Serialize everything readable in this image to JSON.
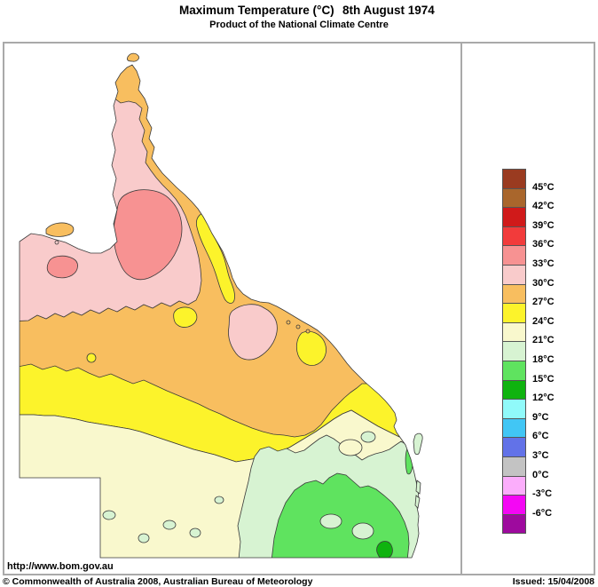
{
  "header": {
    "title": "Maximum Temperature (°C)",
    "date": "8th August 1974",
    "subtitle": "Product of the National Climate Centre"
  },
  "palette": {
    "band_45plus": "#9a3b20",
    "band_42_45": "#a9662c",
    "band_39_42": "#d01a1a",
    "band_36_39": "#f23b3b",
    "band_33_36": "#f79292",
    "band_30_33": "#f9cbcb",
    "band_27_30": "#f8be5f",
    "band_24_27": "#fcf32b",
    "band_21_24": "#f9f8cd",
    "band_18_21": "#d7f3d2",
    "band_15_18": "#5fe35f",
    "band_12_15": "#0fb30f",
    "band_9_12": "#90fafa",
    "band_6_9": "#41c6f5",
    "band_3_6": "#6272e8",
    "band_0_3": "#c3c3c3",
    "band_m3_0": "#fbadfb",
    "band_m6_m3": "#f407f4",
    "band_below_m6": "#9e0a9e"
  },
  "legend": {
    "swatches": [
      "band_45plus",
      "band_42_45",
      "band_39_42",
      "band_36_39",
      "band_33_36",
      "band_30_33",
      "band_27_30",
      "band_24_27",
      "band_21_24",
      "band_18_21",
      "band_15_18",
      "band_12_15",
      "band_9_12",
      "band_6_9",
      "band_3_6",
      "band_0_3",
      "band_m3_0",
      "band_m6_m3",
      "band_below_m6"
    ],
    "labels": [
      "45°C",
      "42°C",
      "39°C",
      "36°C",
      "33°C",
      "30°C",
      "27°C",
      "24°C",
      "21°C",
      "18°C",
      "15°C",
      "12°C",
      "9°C",
      "6°C",
      "3°C",
      "0°C",
      "-3°C",
      "-6°C"
    ]
  },
  "footer": {
    "url": "http://www.bom.gov.au",
    "copyright": "© Commonwealth of Australia 2008, Australian Bureau of Meteorology",
    "issued": "Issued: 15/04/2008"
  }
}
